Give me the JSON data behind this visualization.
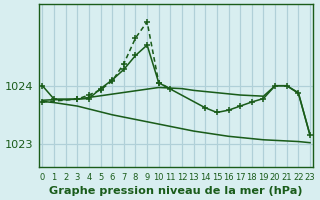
{
  "title": "Graphe pression niveau de la mer (hPa)",
  "background_color": "#d8eef0",
  "grid_color": "#b0d0d8",
  "line_color": "#1a5c1a",
  "ylim": [
    1022.6,
    1025.4
  ],
  "yticks": [
    1023,
    1024
  ],
  "xlim": [
    -0.3,
    23.3
  ],
  "xticks": [
    0,
    1,
    2,
    3,
    4,
    5,
    6,
    7,
    8,
    9,
    10,
    11,
    12,
    13,
    14,
    15,
    16,
    17,
    18,
    19,
    20,
    21,
    22,
    23
  ],
  "line1_x": [
    0,
    1,
    3,
    4,
    5,
    6,
    7,
    8,
    9,
    10,
    14,
    15,
    16,
    17,
    18,
    19,
    20,
    21,
    22,
    23
  ],
  "line1_y": [
    1024.0,
    1023.77,
    1023.77,
    1023.78,
    1023.95,
    1024.1,
    1024.28,
    1024.52,
    1024.7,
    1024.05,
    1023.62,
    1023.54,
    1023.58,
    1023.65,
    1023.72,
    1023.78,
    1024.0,
    1024.0,
    1023.88,
    1023.15
  ],
  "line2_x": [
    0,
    3,
    4,
    5,
    6,
    7,
    8,
    9,
    10,
    11
  ],
  "line2_y": [
    1023.72,
    1023.77,
    1023.84,
    1023.93,
    1024.08,
    1024.38,
    1024.82,
    1025.1,
    1024.05,
    1023.95
  ],
  "line3_x": [
    0,
    1,
    2,
    3,
    4,
    5,
    6,
    7,
    8,
    9,
    10,
    11,
    12,
    13,
    14,
    15,
    16,
    17,
    18,
    19,
    20,
    21,
    22,
    23
  ],
  "line3_y": [
    1023.73,
    1023.71,
    1023.68,
    1023.65,
    1023.6,
    1023.55,
    1023.5,
    1023.46,
    1023.42,
    1023.38,
    1023.34,
    1023.3,
    1023.26,
    1023.22,
    1023.19,
    1023.16,
    1023.13,
    1023.11,
    1023.09,
    1023.07,
    1023.06,
    1023.05,
    1023.04,
    1023.02
  ],
  "line4_x": [
    0,
    1,
    2,
    3,
    10,
    11,
    12,
    13,
    14,
    15,
    16,
    17,
    18,
    19,
    20,
    21,
    22,
    23
  ],
  "line4_y": [
    1023.75,
    1023.76,
    1023.76,
    1023.77,
    1023.97,
    1023.96,
    1023.95,
    1023.92,
    1023.9,
    1023.88,
    1023.86,
    1023.84,
    1023.83,
    1023.82,
    1024.0,
    1024.0,
    1023.87,
    1023.15
  ],
  "figsize": [
    2.56,
    1.6
  ],
  "dpi": 125
}
